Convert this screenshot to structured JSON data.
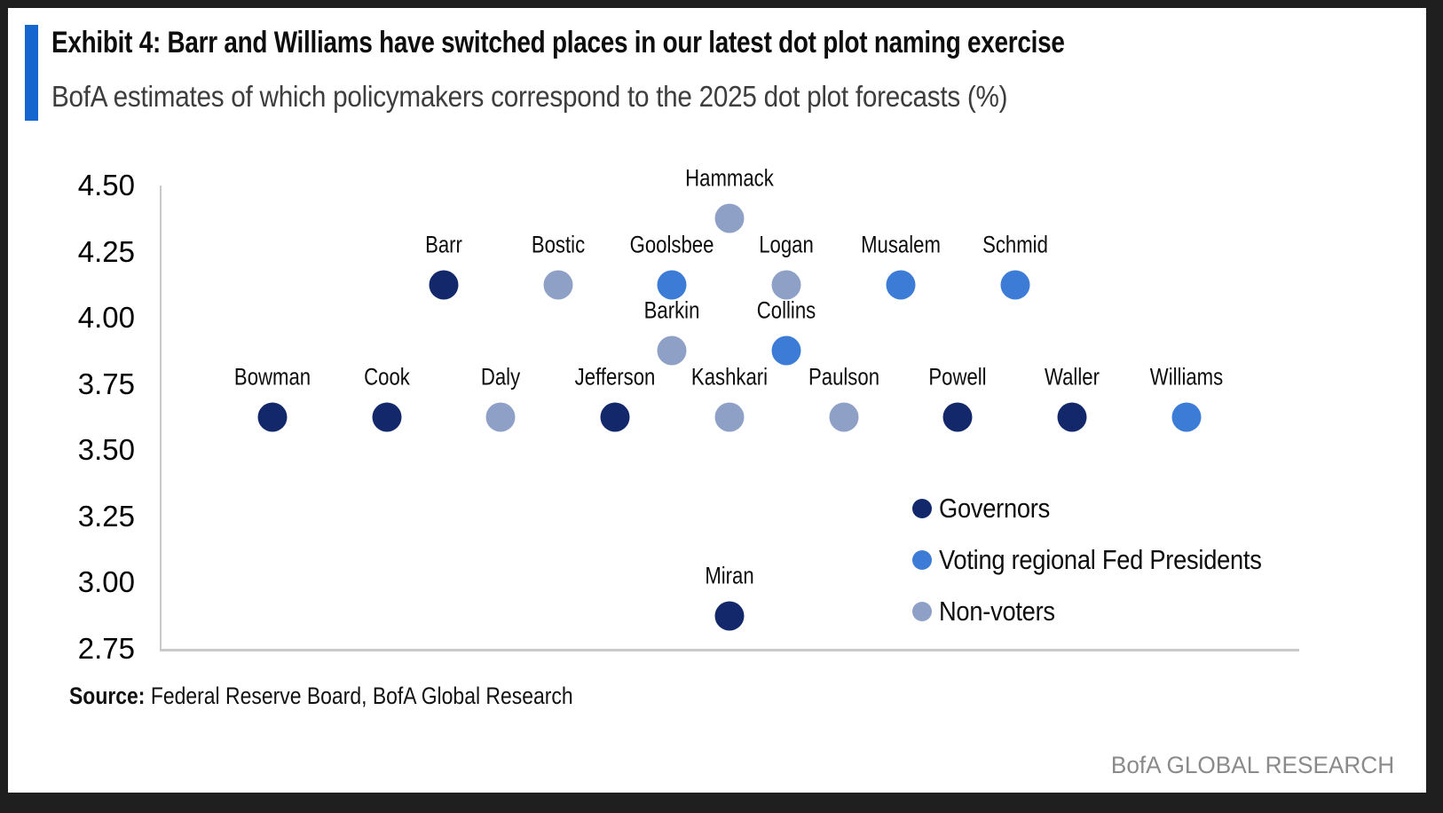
{
  "header": {
    "exhibit_title": "Exhibit 4: Barr and Williams have switched places in our latest dot plot naming exercise",
    "subtitle": "BofA estimates of which policymakers correspond to the 2025 dot plot forecasts (%)",
    "accent_color": "#1666cf"
  },
  "chart_data": {
    "type": "scatter",
    "title": "Exhibit 4: Barr and Williams have switched places in our latest dot plot naming exercise",
    "subtitle": "BofA estimates of which policymakers correspond to the 2025 dot plot forecasts (%)",
    "xlabel": "",
    "ylabel": "",
    "ylim": [
      2.75,
      4.5
    ],
    "ytick_step": 0.25,
    "yticks": [
      "4.50",
      "4.25",
      "4.00",
      "3.75",
      "3.50",
      "3.25",
      "3.00",
      "2.75"
    ],
    "grid": false,
    "legend_position": "inside-lower-right",
    "groups": {
      "governors": {
        "label": "Governors",
        "color": "#13276b"
      },
      "voters": {
        "label": "Voting regional Fed Presidents",
        "color": "#3c7cd6"
      },
      "nonvoters": {
        "label": "Non-voters",
        "color": "#8fa0c6"
      }
    },
    "points": [
      {
        "name": "Bowman",
        "rate": 3.625,
        "col": 0,
        "group": "governors"
      },
      {
        "name": "Cook",
        "rate": 3.625,
        "col": 1,
        "group": "governors"
      },
      {
        "name": "Daly",
        "rate": 3.625,
        "col": 2,
        "group": "nonvoters"
      },
      {
        "name": "Jefferson",
        "rate": 3.625,
        "col": 3,
        "group": "governors"
      },
      {
        "name": "Kashkari",
        "rate": 3.625,
        "col": 4,
        "group": "nonvoters"
      },
      {
        "name": "Paulson",
        "rate": 3.625,
        "col": 5,
        "group": "nonvoters"
      },
      {
        "name": "Powell",
        "rate": 3.625,
        "col": 6,
        "group": "governors"
      },
      {
        "name": "Waller",
        "rate": 3.625,
        "col": 7,
        "group": "governors"
      },
      {
        "name": "Williams",
        "rate": 3.625,
        "col": 8,
        "group": "voters"
      },
      {
        "name": "Barr",
        "rate": 4.125,
        "col": 1.5,
        "group": "governors"
      },
      {
        "name": "Bostic",
        "rate": 4.125,
        "col": 2.5,
        "group": "nonvoters"
      },
      {
        "name": "Goolsbee",
        "rate": 4.125,
        "col": 3.5,
        "group": "voters"
      },
      {
        "name": "Logan",
        "rate": 4.125,
        "col": 4.5,
        "group": "nonvoters"
      },
      {
        "name": "Musalem",
        "rate": 4.125,
        "col": 5.5,
        "group": "voters"
      },
      {
        "name": "Schmid",
        "rate": 4.125,
        "col": 6.5,
        "group": "voters"
      },
      {
        "name": "Barkin",
        "rate": 3.875,
        "col": 3.5,
        "group": "nonvoters"
      },
      {
        "name": "Collins",
        "rate": 3.875,
        "col": 4.5,
        "group": "voters"
      },
      {
        "name": "Hammack",
        "rate": 4.375,
        "col": 4,
        "group": "nonvoters"
      },
      {
        "name": "Miran",
        "rate": 2.875,
        "col": 4,
        "group": "governors"
      }
    ]
  },
  "legend": {
    "items": [
      "governors",
      "voters",
      "nonvoters"
    ]
  },
  "footer": {
    "source_label": "Source:",
    "source_text": " Federal Reserve Board, BofA Global Research",
    "brand": "BofA GLOBAL RESEARCH"
  }
}
